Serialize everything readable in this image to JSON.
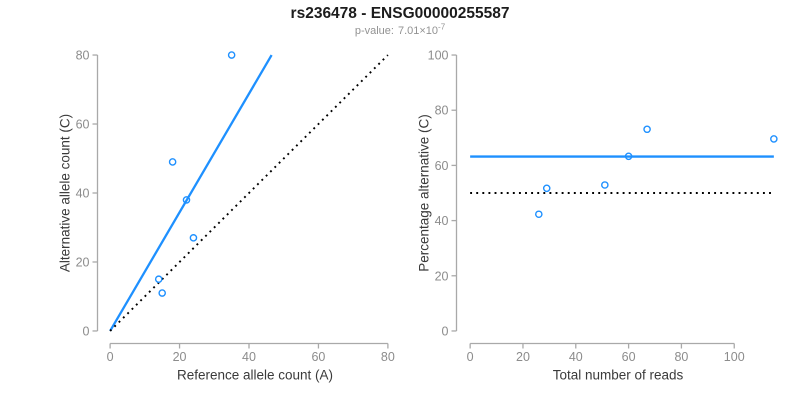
{
  "header": {
    "title": "rs236478 - ENSG00000255587",
    "pvalue_label": "p-value:",
    "pvalue_base": "7.01×10",
    "pvalue_exponent": "-7"
  },
  "colors": {
    "accent_blue": "#1e90ff",
    "line_black": "#000000",
    "axis_gray": "#a9a9a9",
    "tick_label_gray": "#8c8c8c",
    "axis_title_dark": "#3a3a3a",
    "title_black": "#1c1c1c",
    "subtitle_gray": "#929292"
  },
  "chart_data": [
    {
      "id": "allele-count-scatter",
      "type": "scatter",
      "title": "",
      "xlabel": "Reference allele count (A)",
      "ylabel": "Alternative allele count (C)",
      "xlim": [
        0,
        80
      ],
      "ylim": [
        0,
        80
      ],
      "xticks": [
        0,
        20,
        40,
        60,
        80
      ],
      "yticks": [
        0,
        20,
        40,
        60,
        80
      ],
      "grid": false,
      "legend": "none",
      "points": [
        [
          14,
          15
        ],
        [
          15,
          11
        ],
        [
          18,
          49
        ],
        [
          22,
          38
        ],
        [
          24,
          27
        ],
        [
          35,
          80
        ]
      ],
      "lines": [
        {
          "name": "fitted-ratio-line",
          "type": "ab",
          "slope": 1.72,
          "intercept": 0,
          "style": "solid",
          "color": "accent_blue"
        },
        {
          "name": "identity-line",
          "type": "ab",
          "slope": 1,
          "intercept": 0,
          "style": "dotted",
          "color": "line_black"
        }
      ]
    },
    {
      "id": "percentage-vs-reads-scatter",
      "type": "scatter",
      "title": "",
      "xlabel": "Total number of reads",
      "ylabel": "Percentage alternative (C)",
      "xlim": [
        0,
        115
      ],
      "ylim": [
        0,
        100
      ],
      "xticks": [
        0,
        20,
        40,
        60,
        80,
        100
      ],
      "yticks": [
        0,
        20,
        40,
        60,
        80,
        100
      ],
      "grid": false,
      "legend": "none",
      "points": [
        [
          26,
          42.3
        ],
        [
          29,
          51.7
        ],
        [
          51,
          52.9
        ],
        [
          60,
          63.3
        ],
        [
          67,
          73.1
        ],
        [
          115,
          69.6
        ]
      ],
      "lines": [
        {
          "name": "mean-percentage-line",
          "type": "h",
          "y": 63.2,
          "x1": 0,
          "x2": 115,
          "style": "solid",
          "color": "accent_blue"
        },
        {
          "name": "expected-fifty-percent-line",
          "type": "h",
          "y": 50,
          "x1": 0,
          "x2": 115,
          "style": "dotted",
          "color": "line_black"
        }
      ]
    }
  ]
}
